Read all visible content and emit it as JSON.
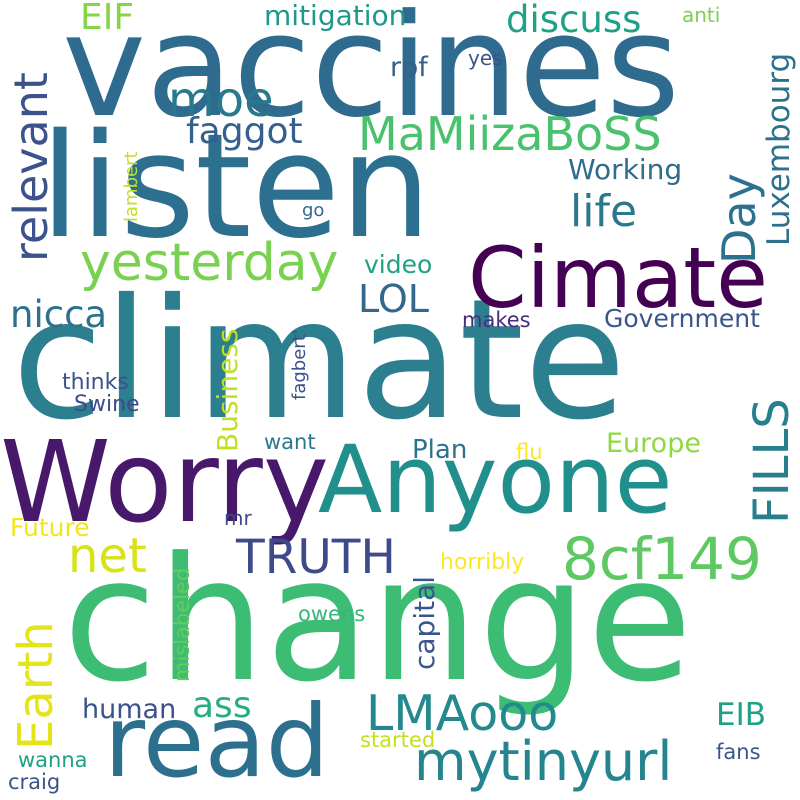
{
  "palette": [
    "#440154",
    "#3b518b",
    "#2c718e",
    "#21918c",
    "#27ad81",
    "#5cc863",
    "#aadc32",
    "#fde725"
  ],
  "words": [
    {
      "text": "change",
      "color": "#3dbc74"
    },
    {
      "text": "climate",
      "color": "#2b7f8e"
    },
    {
      "text": "vaccines",
      "color": "#2e6b8e"
    },
    {
      "text": "listen",
      "color": "#2c6f8e"
    },
    {
      "text": "read",
      "color": "#2d708e"
    },
    {
      "text": "Worry",
      "color": "#48196b"
    },
    {
      "text": "Anyone",
      "color": "#21908d"
    },
    {
      "text": "Cimate",
      "color": "#440154"
    },
    {
      "text": "8cf149",
      "color": "#5ec962"
    },
    {
      "text": "mytinyurl",
      "color": "#25858e"
    },
    {
      "text": "LMAooo",
      "color": "#23898e"
    },
    {
      "text": "TRUTH",
      "color": "#3e4a89"
    },
    {
      "text": "yesterday",
      "color": "#7ad151"
    },
    {
      "text": "MaMiizaBoSS",
      "color": "#4ac16d"
    },
    {
      "text": "net",
      "color": "#d8e219"
    },
    {
      "text": "Earth",
      "color": "#e5e419"
    },
    {
      "text": "relevant",
      "color": "#3b528b"
    },
    {
      "text": "moe",
      "color": "#2a788e"
    },
    {
      "text": "discuss",
      "color": "#1fa187"
    },
    {
      "text": "EIF",
      "color": "#86d549"
    },
    {
      "text": "mitigation",
      "color": "#1f988b"
    },
    {
      "text": "anti",
      "color": "#7ad151"
    },
    {
      "text": "faggot",
      "color": "#355f8d"
    },
    {
      "text": "life",
      "color": "#2a788e"
    },
    {
      "text": "Day",
      "color": "#2c728e"
    },
    {
      "text": "Luxembourg",
      "color": "#2c718e"
    },
    {
      "text": "Working",
      "color": "#2f6c8e"
    },
    {
      "text": "rpf",
      "color": "#355f8d"
    },
    {
      "text": "yes",
      "color": "#3b528b"
    },
    {
      "text": "lambert",
      "color": "#c2df23"
    },
    {
      "text": "go",
      "color": "#31688e"
    },
    {
      "text": "video",
      "color": "#1fa187"
    },
    {
      "text": "LOL",
      "color": "#31688e"
    },
    {
      "text": "FILLS",
      "color": "#277f8e"
    },
    {
      "text": "nicca",
      "color": "#2c718e"
    },
    {
      "text": "Government",
      "color": "#39568c"
    },
    {
      "text": "makes",
      "color": "#472d7b"
    },
    {
      "text": "fagbert'",
      "color": "#3b528b"
    },
    {
      "text": "Business",
      "color": "#c0df25"
    },
    {
      "text": "thinks",
      "color": "#3b528b"
    },
    {
      "text": "Swine",
      "color": "#3e4a89"
    },
    {
      "text": "want",
      "color": "#2a788e"
    },
    {
      "text": "Plan",
      "color": "#2c728e"
    },
    {
      "text": "flu",
      "color": "#fde725"
    },
    {
      "text": "Europe",
      "color": "#8fd744"
    },
    {
      "text": "Future",
      "color": "#f1e51d"
    },
    {
      "text": "mr",
      "color": "#3e4a89"
    },
    {
      "text": "capital",
      "color": "#39568c"
    },
    {
      "text": "horribly",
      "color": "#fde725"
    },
    {
      "text": "mislabeled",
      "color": "#65cb5e"
    },
    {
      "text": "owens",
      "color": "#35b779"
    },
    {
      "text": "human",
      "color": "#3b528b"
    },
    {
      "text": "ass",
      "color": "#27ad81"
    },
    {
      "text": "EIB",
      "color": "#1fa187"
    },
    {
      "text": "started",
      "color": "#c2df23"
    },
    {
      "text": "wanna",
      "color": "#1fa187"
    },
    {
      "text": "fans",
      "color": "#39568c"
    },
    {
      "text": "craig",
      "color": "#3b528b"
    }
  ]
}
